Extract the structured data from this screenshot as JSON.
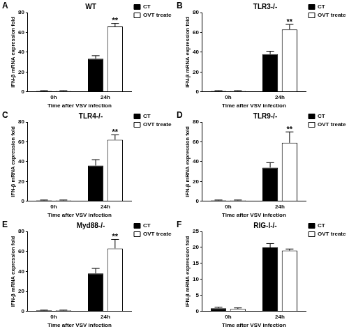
{
  "chart_data": [
    {
      "type": "bar",
      "panel_label": "A",
      "title": "WT",
      "x_label": "Time after VSV infection",
      "y_label": "IFN-β mRNA expression fold",
      "categories": [
        "0h",
        "24h"
      ],
      "series": [
        {
          "name": "CT",
          "color": "#000000",
          "values": [
            1,
            33.5
          ],
          "errors": [
            0.3,
            3
          ]
        },
        {
          "name": "OVT treated",
          "color": "#ffffff",
          "values": [
            1,
            66
          ],
          "errors": [
            0.3,
            3
          ]
        }
      ],
      "ylim": [
        0,
        80
      ],
      "yticks": [
        0,
        20,
        40,
        60,
        80
      ],
      "grid": false,
      "legend": "right",
      "annotations": [
        {
          "text": "**",
          "series": "OVT treated",
          "category": "24h"
        }
      ]
    },
    {
      "type": "bar",
      "panel_label": "B",
      "title": "TLR3-/-",
      "x_label": "Time after VSV infection",
      "y_label": "IFN-β mRNA expression fold",
      "categories": [
        "0h",
        "24h"
      ],
      "series": [
        {
          "name": "CT",
          "color": "#000000",
          "values": [
            1,
            38
          ],
          "errors": [
            0.3,
            3
          ]
        },
        {
          "name": "OVT treated",
          "color": "#ffffff",
          "values": [
            1,
            63
          ],
          "errors": [
            0.3,
            5
          ]
        }
      ],
      "ylim": [
        0,
        80
      ],
      "yticks": [
        0,
        20,
        40,
        60,
        80
      ],
      "grid": false,
      "legend": "right",
      "annotations": [
        {
          "text": "**",
          "series": "OVT treated",
          "category": "24h"
        }
      ]
    },
    {
      "type": "bar",
      "panel_label": "C",
      "title": "TLR4-/-",
      "x_label": "Time after VSV infection",
      "y_label": "IFN-β mRNA expression fold",
      "categories": [
        "0h",
        "24h"
      ],
      "series": [
        {
          "name": "CT",
          "color": "#000000",
          "values": [
            1,
            36
          ],
          "errors": [
            0.3,
            6
          ]
        },
        {
          "name": "OVT treated",
          "color": "#ffffff",
          "values": [
            1,
            62
          ],
          "errors": [
            0.3,
            5
          ]
        }
      ],
      "ylim": [
        0,
        80
      ],
      "yticks": [
        0,
        20,
        40,
        60,
        80
      ],
      "grid": false,
      "legend": "right",
      "annotations": [
        {
          "text": "**",
          "series": "OVT treated",
          "category": "24h"
        }
      ]
    },
    {
      "type": "bar",
      "panel_label": "D",
      "title": "TLR9-/-",
      "x_label": "Time after VSV infection",
      "y_label": "IFN-β mRNA expression fold",
      "categories": [
        "0h",
        "24h"
      ],
      "series": [
        {
          "name": "CT",
          "color": "#000000",
          "values": [
            1,
            34
          ],
          "errors": [
            0.3,
            5
          ]
        },
        {
          "name": "OVT treated",
          "color": "#ffffff",
          "values": [
            1,
            59
          ],
          "errors": [
            0.3,
            11
          ]
        }
      ],
      "ylim": [
        0,
        80
      ],
      "yticks": [
        0,
        20,
        40,
        60,
        80
      ],
      "grid": false,
      "legend": "right",
      "annotations": [
        {
          "text": "**",
          "series": "OVT treated",
          "category": "24h"
        }
      ]
    },
    {
      "type": "bar",
      "panel_label": "E",
      "title": "Myd88-/-",
      "x_label": "Time after VSV infection",
      "y_label": "IFN-β mRNA expression fold",
      "categories": [
        "0h",
        "24h"
      ],
      "series": [
        {
          "name": "CT",
          "color": "#000000",
          "values": [
            1,
            38
          ],
          "errors": [
            0.3,
            5
          ]
        },
        {
          "name": "OVT treated",
          "color": "#ffffff",
          "values": [
            1,
            63
          ],
          "errors": [
            0.3,
            9
          ]
        }
      ],
      "ylim": [
        0,
        80
      ],
      "yticks": [
        0,
        20,
        40,
        60,
        80
      ],
      "grid": false,
      "legend": "right",
      "annotations": [
        {
          "text": "**",
          "series": "OVT treated",
          "category": "24h"
        }
      ]
    },
    {
      "type": "bar",
      "panel_label": "F",
      "title": "RIG-I-/-",
      "x_label": "Time after VSV infection",
      "y_label": "IFN-β mRNA expression fold",
      "categories": [
        "0h",
        "24h"
      ],
      "series": [
        {
          "name": "CT",
          "color": "#000000",
          "values": [
            1,
            20
          ],
          "errors": [
            0.3,
            1.2
          ]
        },
        {
          "name": "OVT treated",
          "color": "#ffffff",
          "values": [
            0.8,
            19
          ],
          "errors": [
            0.3,
            0.5
          ]
        }
      ],
      "ylim": [
        0,
        25
      ],
      "yticks": [
        0,
        5,
        10,
        15,
        20,
        25
      ],
      "grid": false,
      "legend": "right",
      "annotations": []
    }
  ]
}
